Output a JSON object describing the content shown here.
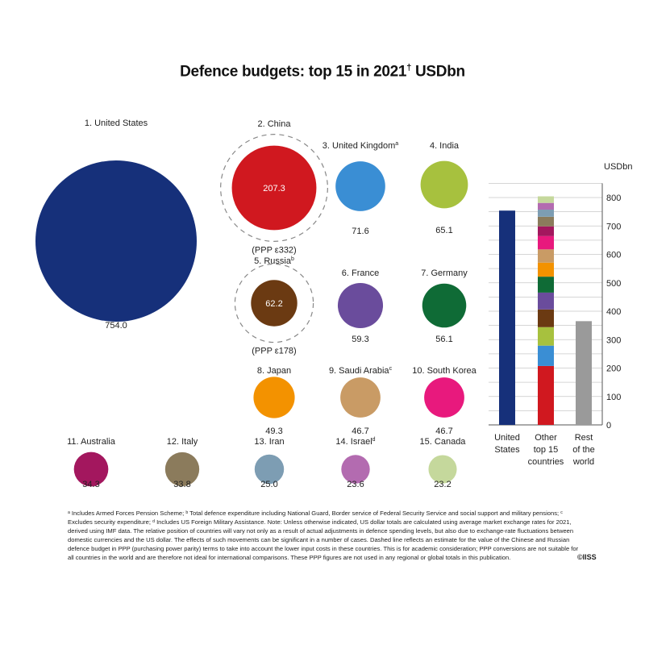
{
  "chart_data": [
    {
      "type": "bubble",
      "title": "Defence budgets: top 15 in 2021",
      "title_mark": "†",
      "unit": "USDbn",
      "countries": [
        {
          "rank": 1,
          "name": "United States",
          "value": 754.0,
          "label": "754.0",
          "color": "#16307a"
        },
        {
          "rank": 2,
          "name": "China",
          "value": 207.3,
          "label": "207.3",
          "color": "#d0181f",
          "ppp": 332,
          "ppp_label": "(PPP ε332)"
        },
        {
          "rank": 3,
          "name": "United Kingdom",
          "note": "a",
          "value": 71.6,
          "label": "71.6",
          "color": "#3a8ed4"
        },
        {
          "rank": 4,
          "name": "India",
          "value": 65.1,
          "label": "65.1",
          "color": "#a7c13e"
        },
        {
          "rank": 5,
          "name": "Russia",
          "note": "b",
          "value": 62.2,
          "label": "62.2",
          "color": "#6b3a12",
          "ppp": 178,
          "ppp_label": "(PPP ε178)"
        },
        {
          "rank": 6,
          "name": "France",
          "value": 59.3,
          "label": "59.3",
          "color": "#6a4c9c"
        },
        {
          "rank": 7,
          "name": "Germany",
          "value": 56.1,
          "label": "56.1",
          "color": "#0f6b36"
        },
        {
          "rank": 8,
          "name": "Japan",
          "value": 49.3,
          "label": "49.3",
          "color": "#f39200"
        },
        {
          "rank": 9,
          "name": "Saudi Arabia",
          "note": "c",
          "value": 46.7,
          "label": "46.7",
          "color": "#c99b65"
        },
        {
          "rank": 10,
          "name": "South Korea",
          "value": 46.7,
          "label": "46.7",
          "color": "#e8197d"
        },
        {
          "rank": 11,
          "name": "Australia",
          "value": 34.3,
          "label": "34.3",
          "color": "#a3175e"
        },
        {
          "rank": 12,
          "name": "Italy",
          "value": 33.8,
          "label": "33.8",
          "color": "#8b7b5c"
        },
        {
          "rank": 13,
          "name": "Iran",
          "value": 25.0,
          "label": "25.0",
          "color": "#7d9db3"
        },
        {
          "rank": 14,
          "name": "Israel",
          "note": "d",
          "value": 23.6,
          "label": "23.6",
          "color": "#b36bb0"
        },
        {
          "rank": 15,
          "name": "Canada",
          "value": 23.2,
          "label": "23.2",
          "color": "#c5d89c"
        }
      ]
    },
    {
      "type": "stacked-bar",
      "ylabel": "USDbn",
      "ylim": [
        0,
        800
      ],
      "yticks": [
        0,
        100,
        200,
        300,
        400,
        500,
        600,
        700,
        800
      ],
      "grid": true,
      "categories": [
        "United States",
        "Other top 15 countries",
        "Rest of the world"
      ],
      "category_lines": [
        [
          "United",
          "States"
        ],
        [
          "Other",
          "top 15",
          "countries"
        ],
        [
          "Rest",
          "of the",
          "world"
        ]
      ],
      "united_states": {
        "value": 754.0,
        "color": "#16307a"
      },
      "other_top15_stack": "ranks 2-15 stacked in order from bottom",
      "rest_of_world": {
        "value": 365,
        "color": "#9a9a9a"
      }
    }
  ],
  "footnotes": "ᵃ Includes Armed Forces Pension Scheme; ᵇ Total defence expenditure including National Guard, Border service of Federal Security Service and social support and military pensions; ᶜ Excludes security expenditure; ᵈ Includes US Foreign Military Assistance. Note: Unless otherwise indicated, US dollar totals are calculated using average market exchange rates for 2021, derived using IMF data. The relative position of countries will vary not only as a result of actual adjustments in defence spending levels, but also due to exchange-rate fluctuations between domestic currencies and the US dollar. The effects of such movements can be significant in a number of cases. Dashed line reflects an estimate for the value of the Chinese and Russian defence budget in PPP (purchasing power parity) terms to take into account the lower input costs in these countries. This is for academic consideration; PPP conversions are not suitable for all countries in the world and are therefore not ideal for international comparisons. These PPP figures are not used in any regional or global totals in this publication.",
  "copyright": "©IISS"
}
